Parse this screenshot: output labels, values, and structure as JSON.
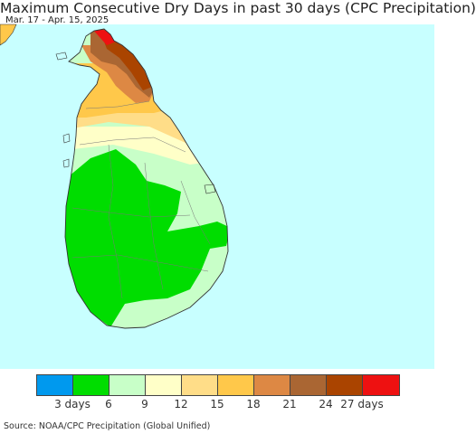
{
  "title": "Maximum Consecutive Dry Days in past 30 days (CPC Precipitation)",
  "subtitle": "Mar. 17 - Apr. 15, 2025",
  "source": "Source: NOAA/CPC Precipitation (Global Unified)",
  "legend": {
    "colors": [
      "#0099ee",
      "#00dd00",
      "#c8ffc8",
      "#ffffc8",
      "#ffdd88",
      "#ffc84a",
      "#dd8844",
      "#aa6633",
      "#aa4400",
      "#ee1111"
    ],
    "tick_labels": [
      "3 days",
      "6",
      "9",
      "12",
      "15",
      "18",
      "21",
      "24",
      "27 days"
    ]
  },
  "map": {
    "ocean_color": "#c8ffff",
    "region": "Sri Lanka"
  }
}
